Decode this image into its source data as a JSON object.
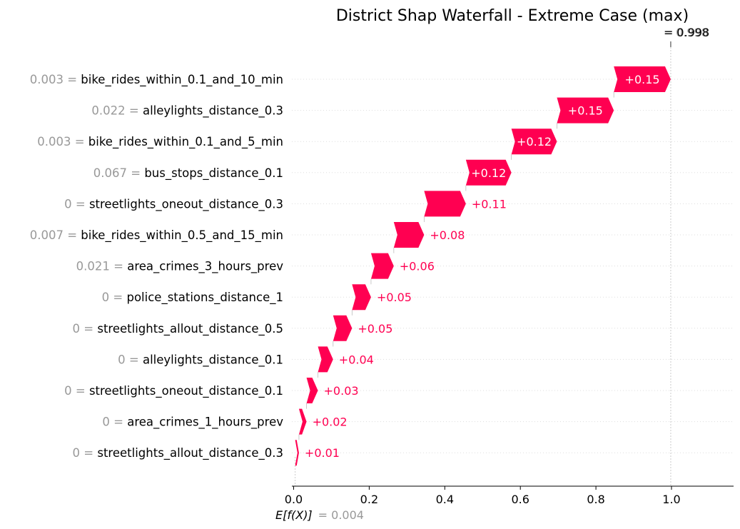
{
  "chart_data": {
    "type": "waterfall",
    "title": "District Shap Waterfall - Extreme Case (max)",
    "features": [
      {
        "value": "0.003",
        "name": "bike_rides_within_0.1_and_10_min",
        "shap": 0.15,
        "label": "+0.15"
      },
      {
        "value": "0.022",
        "name": "alleylights_distance_0.3",
        "shap": 0.15,
        "label": "+0.15"
      },
      {
        "value": "0.003",
        "name": "bike_rides_within_0.1_and_5_min",
        "shap": 0.12,
        "label": "+0.12"
      },
      {
        "value": "0.067",
        "name": "bus_stops_distance_0.1",
        "shap": 0.12,
        "label": "+0.12"
      },
      {
        "value": "0",
        "name": "streetlights_oneout_distance_0.3",
        "shap": 0.11,
        "label": "+0.11"
      },
      {
        "value": "0.007",
        "name": "bike_rides_within_0.5_and_15_min",
        "shap": 0.08,
        "label": "+0.08"
      },
      {
        "value": "0.021",
        "name": "area_crimes_3_hours_prev",
        "shap": 0.06,
        "label": "+0.06"
      },
      {
        "value": "0",
        "name": "police_stations_distance_1",
        "shap": 0.05,
        "label": "+0.05"
      },
      {
        "value": "0",
        "name": "streetlights_allout_distance_0.5",
        "shap": 0.05,
        "label": "+0.05"
      },
      {
        "value": "0",
        "name": "alleylights_distance_0.1",
        "shap": 0.04,
        "label": "+0.04"
      },
      {
        "value": "0",
        "name": "streetlights_oneout_distance_0.1",
        "shap": 0.03,
        "label": "+0.03"
      },
      {
        "value": "0",
        "name": "area_crimes_1_hours_prev",
        "shap": 0.02,
        "label": "+0.02"
      },
      {
        "value": "0",
        "name": "streetlights_allout_distance_0.3",
        "shap": 0.01,
        "label": "+0.01"
      }
    ],
    "base_value": 0.004,
    "base_value_label": "= 0.004",
    "fx_value": 0.998,
    "fx_value_label": "= 0.998",
    "fx_value_overlap_label": "0.998",
    "xlabel": "E[f(X)]",
    "xlim": [
      0.0,
      1.16
    ],
    "xticks": [
      0.0,
      0.2,
      0.4,
      0.6,
      0.8,
      1.0
    ],
    "xtick_labels": [
      "0.0",
      "0.2",
      "0.4",
      "0.6",
      "0.8",
      "1.0"
    ],
    "colors": {
      "positive": "#ff0051",
      "value_text": "#999999",
      "label_text": "#000000"
    }
  }
}
